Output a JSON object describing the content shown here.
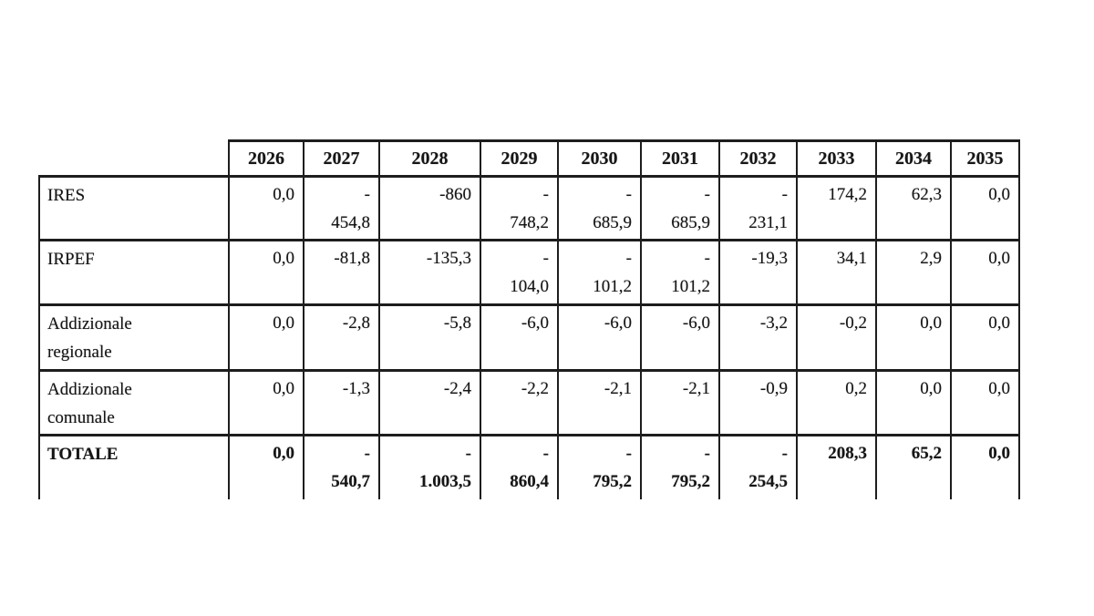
{
  "table": {
    "years": [
      "2026",
      "2027",
      "2028",
      "2029",
      "2030",
      "2031",
      "2032",
      "2033",
      "2034",
      "2035"
    ],
    "rows": [
      {
        "label": "IRES",
        "bold": false,
        "values": [
          "0,0",
          "-\n454,8",
          "-860",
          "-\n748,2",
          "-\n685,9",
          "-\n685,9",
          "-\n231,1",
          "174,2",
          "62,3",
          "0,0"
        ]
      },
      {
        "label": "IRPEF",
        "bold": false,
        "values": [
          "0,0",
          "-81,8",
          "-135,3",
          "-\n104,0",
          "-\n101,2",
          "-\n101,2",
          "-19,3",
          "34,1",
          "2,9",
          "0,0"
        ]
      },
      {
        "label": "Addizionale\nregionale",
        "bold": false,
        "values": [
          "0,0",
          "-2,8",
          "-5,8",
          "-6,0",
          "-6,0",
          "-6,0",
          "-3,2",
          "-0,2",
          "0,0",
          "0,0"
        ]
      },
      {
        "label": "Addizionale\ncomunale",
        "bold": false,
        "values": [
          "0,0",
          "-1,3",
          "-2,4",
          "-2,2",
          "-2,1",
          "-2,1",
          "-0,9",
          "0,2",
          "0,0",
          "0,0"
        ]
      },
      {
        "label": "TOTALE",
        "bold": true,
        "values": [
          "0,0",
          "-\n540,7",
          "-\n1.003,5",
          "-\n860,4",
          "-\n795,2",
          "-\n795,2",
          "-\n254,5",
          "208,3",
          "65,2",
          "0,0"
        ]
      }
    ]
  }
}
